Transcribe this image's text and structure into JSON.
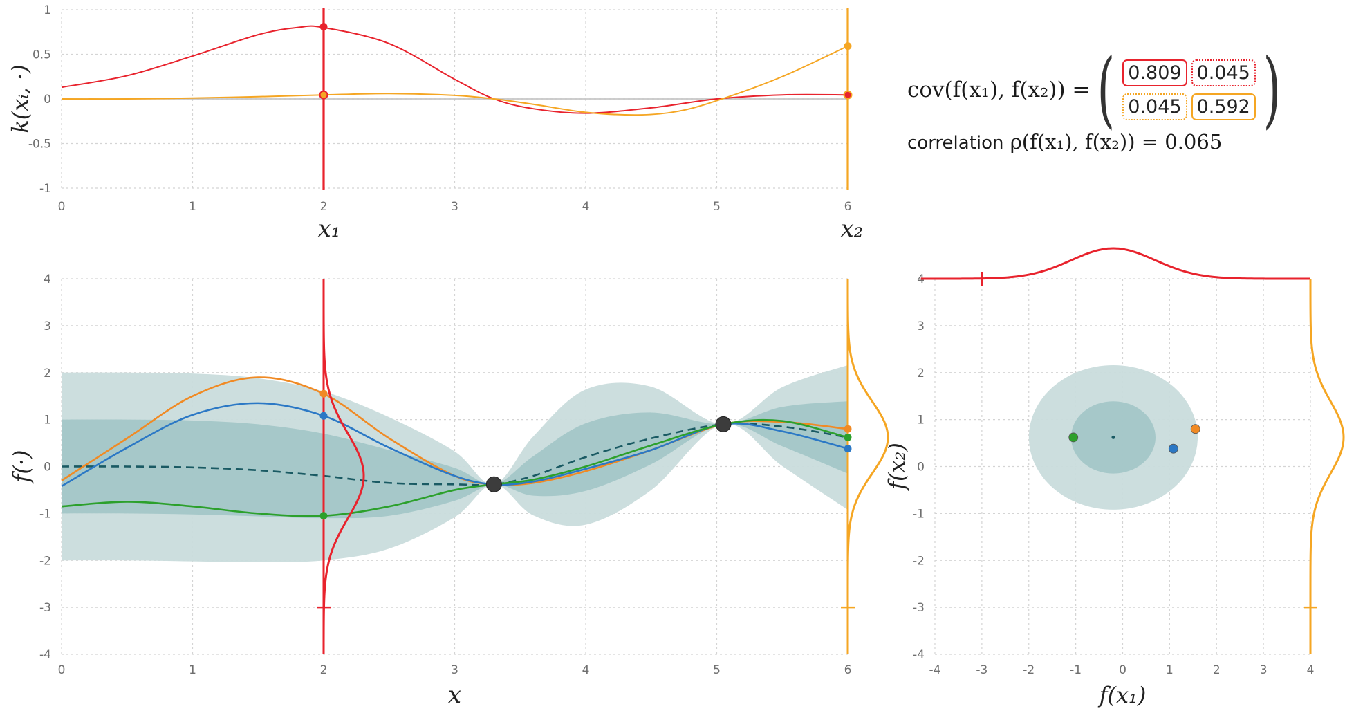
{
  "colors": {
    "red": "#e8232d",
    "orange": "#f5a623",
    "blue": "#2b78c5",
    "green": "#2ca02c",
    "sample_orange": "#f08a24",
    "band_light": "#c9dcdc",
    "band_dark": "#9fc4c6",
    "mean": "#1a5a63"
  },
  "cov_panel": {
    "lhs": "cov(f(x₁), f(x₂)) =",
    "matrix": [
      "0.809",
      "0.045",
      "0.045",
      "0.592"
    ],
    "correlation_label": "correlation",
    "correlation_expr": "ρ(f(x₁), f(x₂)) = 0.065"
  },
  "chart_data": [
    {
      "name": "kernel-plot",
      "type": "line",
      "ylabel": "k(xᵢ, ·)",
      "xlim": [
        0,
        6
      ],
      "ylim": [
        -1,
        1
      ],
      "x_ticks": [
        "0",
        "1",
        "2",
        "3",
        "4",
        "5",
        "6"
      ],
      "y_ticks": [
        "1",
        "0.5",
        "0",
        "-0.5",
        "-1"
      ],
      "x_marker_labels": [
        "x₁",
        "x₂"
      ],
      "x_markers": [
        2,
        6
      ],
      "series": [
        {
          "name": "k(x1,·)",
          "color": "red",
          "x": [
            0,
            0.5,
            1,
            1.5,
            1.8,
            2,
            2.5,
            3,
            3.3,
            3.6,
            4,
            4.5,
            5,
            5.5,
            6
          ],
          "y": [
            0.13,
            0.26,
            0.48,
            0.72,
            0.8,
            0.8,
            0.62,
            0.22,
            0.0,
            -0.11,
            -0.16,
            -0.1,
            0.0,
            0.045,
            0.045
          ]
        },
        {
          "name": "k(x2,·)",
          "color": "orange",
          "x": [
            0,
            0.5,
            1,
            1.5,
            2,
            2.5,
            3,
            3.3,
            3.6,
            4,
            4.4,
            4.7,
            5,
            5.5,
            6
          ],
          "y": [
            0.0,
            0.0,
            0.01,
            0.025,
            0.045,
            0.06,
            0.04,
            0.0,
            -0.06,
            -0.15,
            -0.18,
            -0.14,
            -0.02,
            0.25,
            0.592
          ]
        }
      ],
      "points": [
        {
          "x": 2,
          "y": 0.809,
          "color": "red"
        },
        {
          "x": 2,
          "y": 0.045,
          "color": "orange"
        },
        {
          "x": 6,
          "y": 0.592,
          "color": "orange"
        },
        {
          "x": 6,
          "y": 0.045,
          "color": "red"
        }
      ]
    },
    {
      "name": "posterior-plot",
      "type": "line",
      "xlabel": "x",
      "ylabel": "f(·)",
      "xlim": [
        0,
        6
      ],
      "ylim": [
        -4,
        4
      ],
      "x_ticks": [
        "0",
        "1",
        "2",
        "3",
        "4",
        "5",
        "6"
      ],
      "y_ticks": [
        "4",
        "3",
        "2",
        "1",
        "0",
        "-1",
        "-2",
        "-3",
        "-4"
      ],
      "band": {
        "x": [
          0,
          0.5,
          1,
          1.5,
          2,
          2.5,
          3,
          3.3,
          3.6,
          4,
          4.5,
          5.05,
          5.5,
          6
        ],
        "mean": [
          0.0,
          0.0,
          -0.02,
          -0.08,
          -0.2,
          -0.35,
          -0.38,
          -0.38,
          -0.2,
          0.2,
          0.6,
          0.9,
          0.85,
          0.62
        ],
        "sd": [
          1.0,
          1.0,
          1.0,
          0.98,
          0.9,
          0.7,
          0.35,
          0.0,
          0.42,
          0.72,
          0.55,
          0.0,
          0.42,
          0.77
        ]
      },
      "series": [
        {
          "name": "sample-orange",
          "color": "sample_orange",
          "x": [
            0,
            0.5,
            1,
            1.5,
            2,
            2.5,
            3,
            3.3,
            3.6,
            4,
            4.5,
            5.05,
            5.5,
            6
          ],
          "y": [
            -0.3,
            0.6,
            1.5,
            1.9,
            1.55,
            0.6,
            -0.2,
            -0.38,
            -0.35,
            -0.1,
            0.35,
            0.9,
            0.95,
            0.8
          ]
        },
        {
          "name": "sample-blue",
          "color": "blue",
          "x": [
            0,
            0.5,
            1,
            1.5,
            2,
            2.5,
            3,
            3.3,
            3.6,
            4,
            4.5,
            5.05,
            5.5,
            6
          ],
          "y": [
            -0.42,
            0.4,
            1.1,
            1.35,
            1.08,
            0.4,
            -0.2,
            -0.38,
            -0.32,
            -0.05,
            0.35,
            0.9,
            0.75,
            0.38
          ]
        },
        {
          "name": "sample-green",
          "color": "green",
          "x": [
            0,
            0.5,
            1,
            1.5,
            2,
            2.5,
            3,
            3.3,
            3.6,
            4,
            4.5,
            5.05,
            5.5,
            6
          ],
          "y": [
            -0.85,
            -0.75,
            -0.85,
            -1.0,
            -1.05,
            -0.85,
            -0.5,
            -0.38,
            -0.28,
            0.0,
            0.45,
            0.9,
            0.97,
            0.62
          ]
        }
      ],
      "observations": [
        {
          "x": 3.3,
          "y": -0.38
        },
        {
          "x": 5.05,
          "y": 0.9
        }
      ],
      "marginals": [
        {
          "x": 2,
          "mean": -0.2,
          "sd": 0.9,
          "color": "red"
        },
        {
          "x": 6,
          "mean": 0.62,
          "sd": 0.77,
          "color": "orange"
        }
      ],
      "sample_points_x1": [
        1.55,
        1.08,
        -1.05
      ],
      "sample_points_x2": [
        0.8,
        0.38,
        0.62
      ]
    },
    {
      "name": "joint-plot",
      "type": "scatter",
      "xlabel": "f(x₁)",
      "ylabel": "f(x₂)",
      "xlim": [
        -4,
        4
      ],
      "ylim": [
        -4,
        4
      ],
      "x_ticks": [
        "-4",
        "-3",
        "-2",
        "-1",
        "0",
        "1",
        "2",
        "3",
        "4"
      ],
      "y_ticks": [
        "4",
        "3",
        "2",
        "1",
        "0",
        "-1",
        "-2",
        "-3",
        "-4"
      ],
      "mean": [
        -0.2,
        0.62
      ],
      "cov": [
        [
          0.809,
          0.045
        ],
        [
          0.045,
          0.592
        ]
      ],
      "points": [
        {
          "x": 1.55,
          "y": 0.8,
          "color": "sample_orange"
        },
        {
          "x": 1.08,
          "y": 0.38,
          "color": "blue"
        },
        {
          "x": -1.05,
          "y": 0.62,
          "color": "green"
        }
      ]
    }
  ]
}
